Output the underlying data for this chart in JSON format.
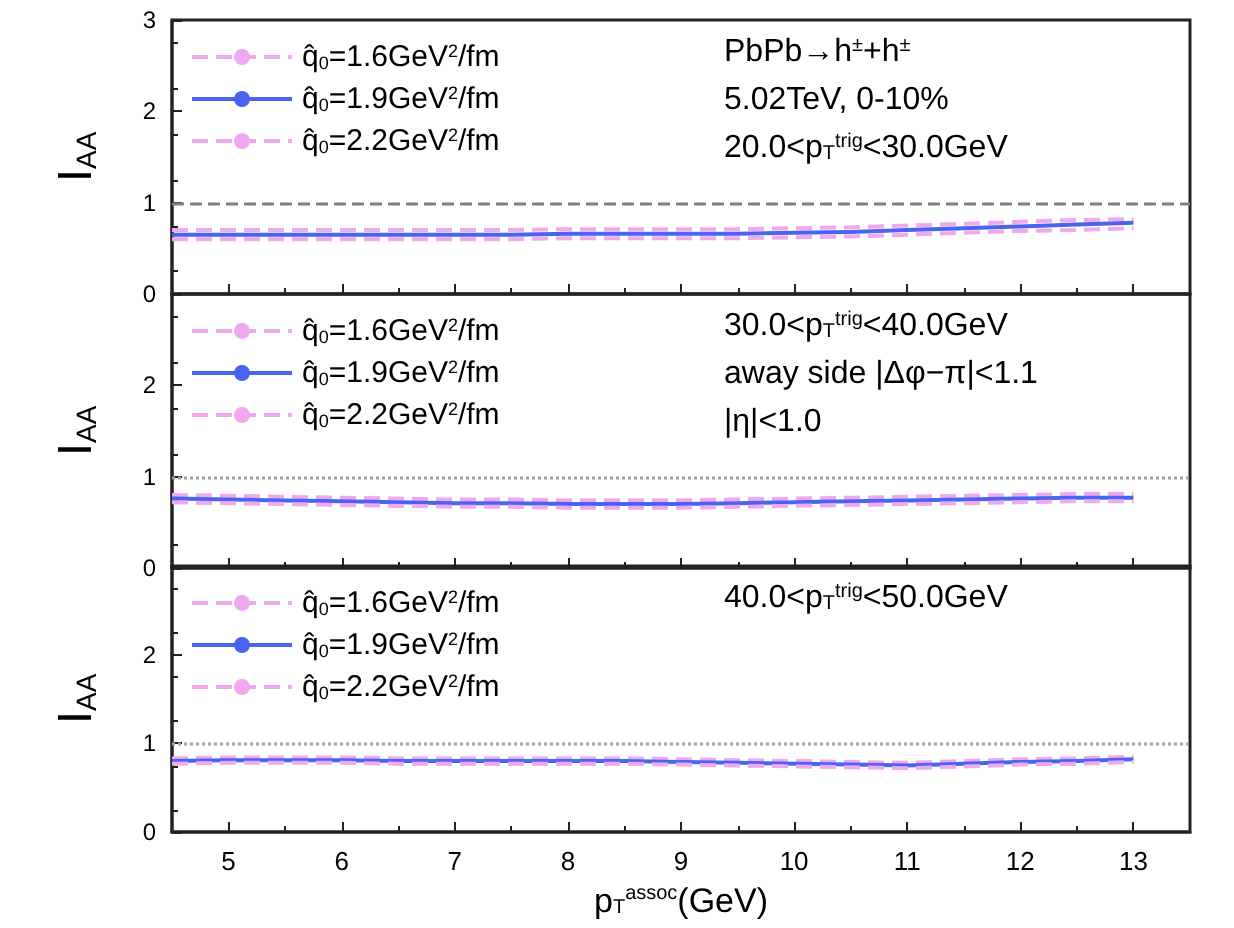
{
  "chart_data": [
    {
      "type": "line",
      "x": [
        4.5,
        5,
        5.5,
        6,
        6.5,
        7,
        7.5,
        8,
        8.5,
        9,
        9.5,
        10,
        10.5,
        11,
        11.5,
        12,
        12.5,
        13
      ],
      "ylabel": "I$_{AA}$",
      "xlim": [
        4.5,
        13.5
      ],
      "xticks": [
        5,
        6,
        7,
        8,
        9,
        10,
        11,
        12,
        13
      ],
      "ylim": [
        0,
        3
      ],
      "yticks": [
        0,
        1,
        2,
        3
      ],
      "tick_labels": "y",
      "legend": "top left",
      "grid": false,
      "annotations": [
        "PbPb→h$^{±}$+h$^{±}$",
        "5.02TeV, 0-10%",
        "20.0<p$_{T}$$^{trig}$<30.0GeV"
      ],
      "ref_lines": [
        {
          "axis": "y",
          "value": 1,
          "color": "#808080",
          "line_style": "dashed"
        }
      ],
      "series": [
        {
          "name": "q̂$_{0}$=1.6GeV$^{2}$/fm",
          "color": "#f0a8f0",
          "line_style": "dashed",
          "values": [
            0.7,
            0.7,
            0.7,
            0.7,
            0.7,
            0.7,
            0.7,
            0.71,
            0.71,
            0.71,
            0.71,
            0.72,
            0.73,
            0.75,
            0.77,
            0.79,
            0.81,
            0.82
          ]
        },
        {
          "name": "q̂$_{0}$=1.9GeV$^{2}$/fm",
          "color": "#4a64f0",
          "line_style": "solid",
          "values": [
            0.65,
            0.65,
            0.65,
            0.65,
            0.65,
            0.65,
            0.65,
            0.66,
            0.66,
            0.66,
            0.66,
            0.67,
            0.68,
            0.7,
            0.72,
            0.74,
            0.76,
            0.78
          ]
        },
        {
          "name": "q̂$_{0}$=2.2GeV$^{2}$/fm",
          "color": "#f0a8f0",
          "line_style": "dashed",
          "values": [
            0.6,
            0.6,
            0.6,
            0.6,
            0.6,
            0.6,
            0.6,
            0.61,
            0.61,
            0.61,
            0.61,
            0.62,
            0.63,
            0.65,
            0.67,
            0.69,
            0.7,
            0.72
          ]
        }
      ]
    },
    {
      "type": "line",
      "x": [
        4.5,
        5,
        5.5,
        6,
        6.5,
        7,
        7.5,
        8,
        8.5,
        9,
        9.5,
        10,
        10.5,
        11,
        11.5,
        12,
        12.5,
        13
      ],
      "ylabel": "I$_{AA}$",
      "xlim": [
        4.5,
        13.5
      ],
      "xticks": [
        5,
        6,
        7,
        8,
        9,
        10,
        11,
        12,
        13
      ],
      "ylim": [
        0,
        3
      ],
      "yticks": [
        0,
        1,
        2,
        {
          "value": 3,
          "label": null
        }
      ],
      "tick_labels": "y",
      "legend": "top left",
      "grid": false,
      "annotations": [
        "30.0<p$_{T}$$^{trig}$<40.0GeV",
        "away side |Δφ−π|<1.1",
        "|η|<1.0"
      ],
      "ref_lines": [
        {
          "axis": "y",
          "value": 1,
          "color": "#a0a0a0",
          "line_style": "dotted"
        }
      ],
      "series": [
        {
          "name": "q̂$_{0}$=1.6GeV$^{2}$/fm",
          "color": "#f0a8f0",
          "line_style": "dashed",
          "values": [
            0.8,
            0.79,
            0.78,
            0.77,
            0.76,
            0.75,
            0.75,
            0.74,
            0.74,
            0.74,
            0.75,
            0.76,
            0.77,
            0.78,
            0.79,
            0.8,
            0.81,
            0.81
          ]
        },
        {
          "name": "q̂$_{0}$=1.9GeV$^{2}$/fm",
          "color": "#4a64f0",
          "line_style": "solid",
          "values": [
            0.76,
            0.75,
            0.74,
            0.73,
            0.72,
            0.71,
            0.71,
            0.7,
            0.7,
            0.7,
            0.71,
            0.72,
            0.73,
            0.74,
            0.75,
            0.76,
            0.77,
            0.77
          ]
        },
        {
          "name": "q̂$_{0}$=2.2GeV$^{2}$/fm",
          "color": "#f0a8f0",
          "line_style": "dashed",
          "values": [
            0.72,
            0.71,
            0.7,
            0.69,
            0.68,
            0.67,
            0.67,
            0.66,
            0.66,
            0.66,
            0.67,
            0.68,
            0.69,
            0.7,
            0.71,
            0.72,
            0.73,
            0.73
          ]
        }
      ]
    },
    {
      "type": "line",
      "x": [
        4.5,
        5,
        5.5,
        6,
        6.5,
        7,
        7.5,
        8,
        8.5,
        9,
        9.5,
        10,
        10.5,
        11,
        11.5,
        12,
        12.5,
        13
      ],
      "xlabel": "p$_{T}$$^{assoc}$(GeV)",
      "ylabel": "I$_{AA}$",
      "xlim": [
        4.5,
        13.5
      ],
      "xticks": [
        5,
        6,
        7,
        8,
        9,
        10,
        11,
        12,
        13
      ],
      "ylim": [
        0,
        3
      ],
      "yticks": [
        0,
        1,
        2,
        {
          "value": 3,
          "label": null
        }
      ],
      "legend": "top left",
      "grid": false,
      "annotations": [
        "40.0<p$_{T}$$^{trig}$<50.0GeV"
      ],
      "ref_lines": [
        {
          "axis": "y",
          "value": 1,
          "color": "#a0a0a0",
          "line_style": "dotted"
        }
      ],
      "series": [
        {
          "name": "q̂$_{0}$=1.6GeV$^{2}$/fm",
          "color": "#f0a8f0",
          "line_style": "dashed",
          "values": [
            0.83,
            0.84,
            0.84,
            0.84,
            0.83,
            0.83,
            0.83,
            0.83,
            0.83,
            0.82,
            0.81,
            0.8,
            0.79,
            0.78,
            0.8,
            0.82,
            0.83,
            0.85
          ]
        },
        {
          "name": "q̂$_{0}$=1.9GeV$^{2}$/fm",
          "color": "#4a64f0",
          "line_style": "solid",
          "values": [
            0.8,
            0.81,
            0.81,
            0.81,
            0.8,
            0.8,
            0.8,
            0.8,
            0.8,
            0.79,
            0.78,
            0.77,
            0.76,
            0.75,
            0.77,
            0.79,
            0.8,
            0.82
          ]
        },
        {
          "name": "q̂$_{0}$=2.2GeV$^{2}$/fm",
          "color": "#f0a8f0",
          "line_style": "dashed",
          "values": [
            0.77,
            0.78,
            0.78,
            0.78,
            0.77,
            0.77,
            0.77,
            0.77,
            0.77,
            0.76,
            0.75,
            0.74,
            0.73,
            0.72,
            0.74,
            0.76,
            0.77,
            0.79
          ]
        }
      ]
    }
  ]
}
